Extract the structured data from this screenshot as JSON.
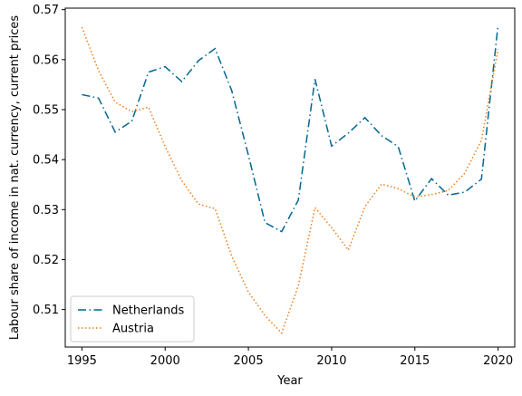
{
  "chart_data": {
    "type": "line",
    "xlabel": "Year",
    "ylabel": "Labour share of income in nat. currency, current prices",
    "xlim": [
      1994,
      2021
    ],
    "ylim": [
      0.5025,
      0.5703
    ],
    "xticks": [
      1995,
      2000,
      2005,
      2010,
      2015,
      2020
    ],
    "yticks": [
      0.51,
      0.52,
      0.53,
      0.54,
      0.55,
      0.56,
      0.57
    ],
    "ytick_labels": [
      "0.51",
      "0.52",
      "0.53",
      "0.54",
      "0.55",
      "0.56",
      "0.57"
    ],
    "grid": false,
    "legend_position": "lower-left",
    "x": [
      1995,
      1996,
      1997,
      1998,
      1999,
      2000,
      2001,
      2002,
      2003,
      2004,
      2005,
      2006,
      2007,
      2008,
      2009,
      2010,
      2011,
      2012,
      2013,
      2014,
      2015,
      2016,
      2017,
      2018,
      2019,
      2020
    ],
    "series": [
      {
        "name": "Netherlands",
        "color": "#006691",
        "style": "dashdot",
        "values": [
          0.553,
          0.5523,
          0.5455,
          0.5477,
          0.5575,
          0.5586,
          0.5556,
          0.5598,
          0.5622,
          0.5538,
          0.5409,
          0.5274,
          0.5256,
          0.5319,
          0.5561,
          0.5427,
          0.5453,
          0.5484,
          0.5448,
          0.5426,
          0.5317,
          0.5362,
          0.5329,
          0.5335,
          0.5361,
          0.567
        ]
      },
      {
        "name": "Austria",
        "color": "#ed7d1a",
        "style": "dotted",
        "values": [
          0.5665,
          0.5578,
          0.5515,
          0.5496,
          0.5505,
          0.5426,
          0.5358,
          0.5311,
          0.5302,
          0.5207,
          0.5135,
          0.5088,
          0.5053,
          0.5148,
          0.5304,
          0.5264,
          0.5219,
          0.5306,
          0.5351,
          0.5342,
          0.5325,
          0.533,
          0.5338,
          0.5373,
          0.5439,
          0.5621
        ]
      }
    ]
  }
}
